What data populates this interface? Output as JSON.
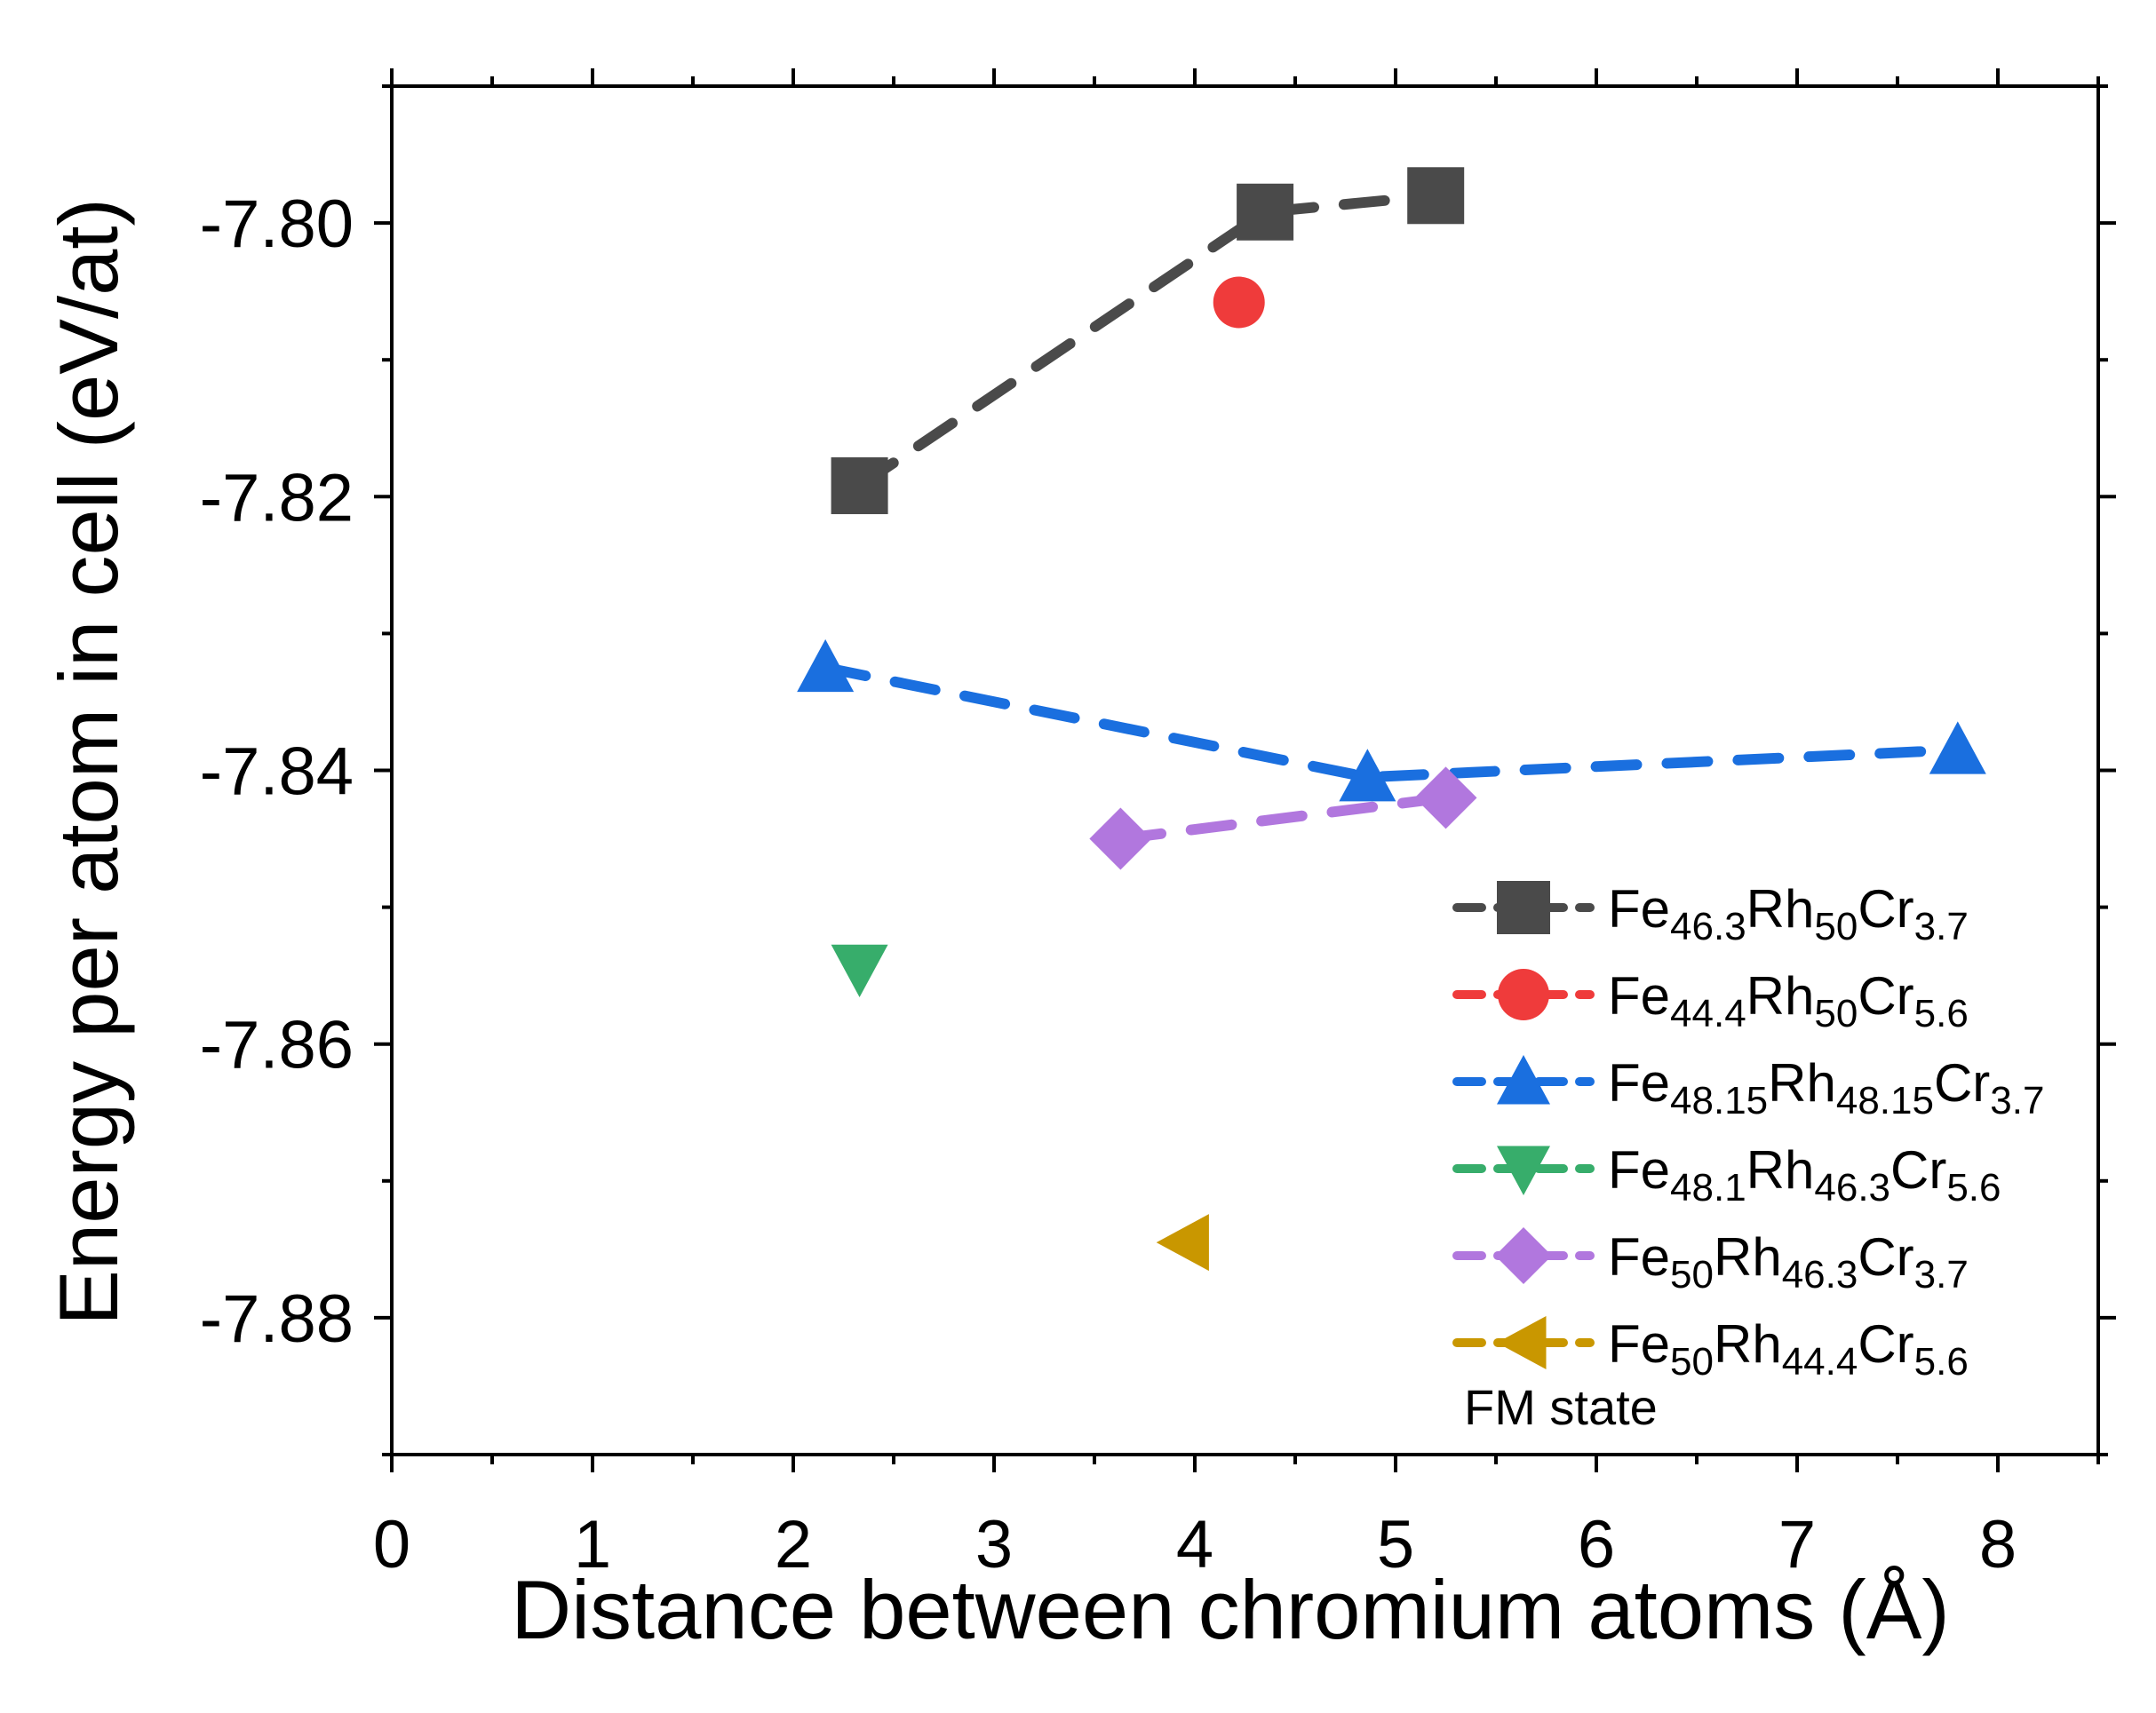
{
  "chart_data": {
    "type": "scatter",
    "title": "",
    "xlabel": "Distance between chromium atoms (Å)",
    "ylabel": "Energy per atom in cell (eV/at)",
    "xlim": [
      0,
      8.5
    ],
    "ylim": [
      -7.89,
      -7.79
    ],
    "xticks": [
      0,
      1,
      2,
      3,
      4,
      5,
      6,
      7,
      8
    ],
    "xtick_labels": [
      "0",
      "1",
      "2",
      "3",
      "4",
      "5",
      "6",
      "7",
      "8"
    ],
    "yticks": [
      -7.8,
      -7.82,
      -7.84,
      -7.86,
      -7.88
    ],
    "ytick_labels": [
      "-7.80",
      "-7.82",
      "-7.84",
      "-7.86",
      "-7.88"
    ],
    "grid": false,
    "legend_position": "bottom-right",
    "annotation": "FM state",
    "series": [
      {
        "name": "Fe46.3Rh50Cr3.7",
        "label_parts": [
          [
            "Fe",
            ""
          ],
          [
            "46.3",
            "sub"
          ],
          [
            "Rh",
            ""
          ],
          [
            "50",
            "sub"
          ],
          [
            "Cr",
            ""
          ],
          [
            "3.7",
            "sub"
          ]
        ],
        "marker": "square",
        "color": "#4a4a4a",
        "x": [
          2.33,
          4.35,
          5.2
        ],
        "y": [
          -7.8192,
          -7.7992,
          -7.798
        ]
      },
      {
        "name": "Fe44.4Rh50Cr5.6",
        "label_parts": [
          [
            "Fe",
            ""
          ],
          [
            "44.4",
            "sub"
          ],
          [
            "Rh",
            ""
          ],
          [
            "50",
            "sub"
          ],
          [
            "Cr",
            ""
          ],
          [
            "5.6",
            "sub"
          ]
        ],
        "marker": "circle",
        "color": "#ef3b3b",
        "x": [
          4.22
        ],
        "y": [
          -7.8058
        ]
      },
      {
        "name": "Fe48.15Rh48.15Cr3.7",
        "label_parts": [
          [
            "Fe",
            ""
          ],
          [
            "48.15",
            "sub"
          ],
          [
            "Rh",
            ""
          ],
          [
            "48.15",
            "sub"
          ],
          [
            "Cr",
            ""
          ],
          [
            "3.7",
            "sub"
          ]
        ],
        "marker": "triangle-up",
        "color": "#1a6fdf",
        "x": [
          2.16,
          4.86,
          7.8
        ],
        "y": [
          -7.8325,
          -7.8405,
          -7.8385
        ]
      },
      {
        "name": "Fe48.1Rh46.3Cr5.6",
        "label_parts": [
          [
            "Fe",
            ""
          ],
          [
            "48.1",
            "sub"
          ],
          [
            "Rh",
            ""
          ],
          [
            "46.3",
            "sub"
          ],
          [
            "Cr",
            ""
          ],
          [
            "5.6",
            "sub"
          ]
        ],
        "marker": "triangle-down",
        "color": "#37ad6b",
        "x": [
          2.33
        ],
        "y": [
          -7.8545
        ]
      },
      {
        "name": "Fe50Rh46.3Cr3.7",
        "label_parts": [
          [
            "Fe",
            ""
          ],
          [
            "50",
            "sub"
          ],
          [
            "Rh",
            ""
          ],
          [
            "46.3",
            "sub"
          ],
          [
            "Cr",
            ""
          ],
          [
            "3.7",
            "sub"
          ]
        ],
        "marker": "diamond",
        "color": "#b177de",
        "x": [
          3.63,
          5.25
        ],
        "y": [
          -7.845,
          -7.842
        ]
      },
      {
        "name": "Fe50Rh44.4Cr5.6",
        "label_parts": [
          [
            "Fe",
            ""
          ],
          [
            "50",
            "sub"
          ],
          [
            "Rh",
            ""
          ],
          [
            "44.4",
            "sub"
          ],
          [
            "Cr",
            ""
          ],
          [
            "5.6",
            "sub"
          ]
        ],
        "marker": "triangle-left",
        "color": "#c99700",
        "x": [
          3.95
        ],
        "y": [
          -7.8745
        ]
      }
    ]
  }
}
